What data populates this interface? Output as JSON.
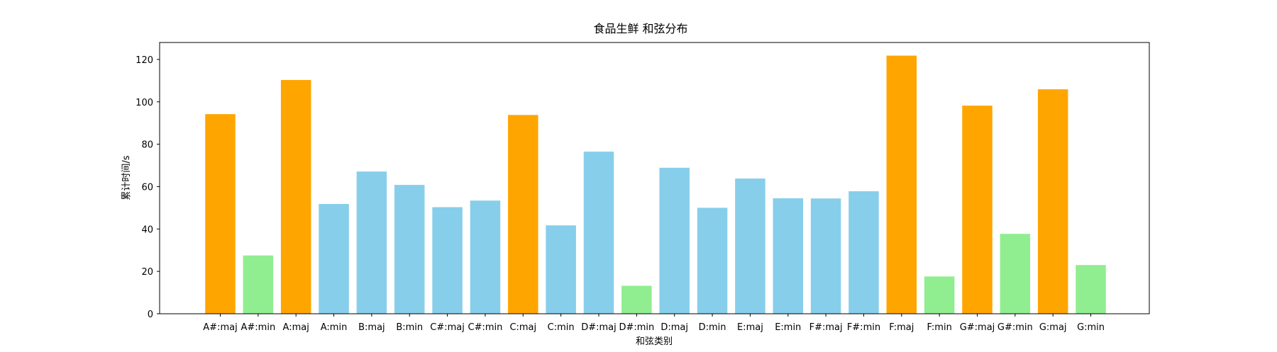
{
  "chart_data": {
    "type": "bar",
    "title": "食品生鲜 和弦分布",
    "xlabel": "和弦类别",
    "ylabel": "累计时间/s",
    "ylim": [
      0,
      128
    ],
    "yticks": [
      0,
      20,
      40,
      60,
      80,
      100,
      120
    ],
    "grid": false,
    "legend": "none",
    "categories": [
      "A#:maj",
      "A#:min",
      "A:maj",
      "A:min",
      "B:maj",
      "B:min",
      "C#:maj",
      "C#:min",
      "C:maj",
      "C:min",
      "D#:maj",
      "D#:min",
      "D:maj",
      "D:min",
      "E:maj",
      "E:min",
      "F#:maj",
      "F#:min",
      "F:maj",
      "F:min",
      "G#:maj",
      "G#:min",
      "G:maj",
      "G:min"
    ],
    "values": [
      94.2,
      27.5,
      110.3,
      51.8,
      67.1,
      60.8,
      50.3,
      53.4,
      93.8,
      41.7,
      76.5,
      13.2,
      68.9,
      50.0,
      63.8,
      54.5,
      54.4,
      57.8,
      121.8,
      17.6,
      98.2,
      37.7,
      105.9,
      23.0
    ],
    "bar_colors": [
      "#ffa500",
      "#90ee90",
      "#ffa500",
      "#87ceeb",
      "#87ceeb",
      "#87ceeb",
      "#87ceeb",
      "#87ceeb",
      "#ffa500",
      "#87ceeb",
      "#87ceeb",
      "#90ee90",
      "#87ceeb",
      "#87ceeb",
      "#87ceeb",
      "#87ceeb",
      "#87ceeb",
      "#87ceeb",
      "#ffa500",
      "#90ee90",
      "#ffa500",
      "#90ee90",
      "#ffa500",
      "#90ee90"
    ]
  }
}
